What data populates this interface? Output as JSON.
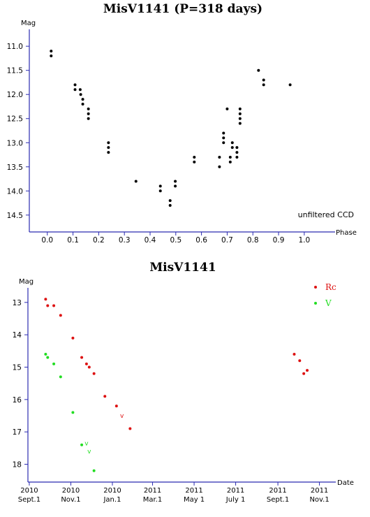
{
  "colors": {
    "axis": "#2b2bb0",
    "rc": "#dd1111",
    "v": "#22dd22",
    "phase_points": "#000000"
  },
  "chart_data": [
    {
      "type": "scatter",
      "title": "MisV1141 (P=318 days)",
      "xlabel": "Phase",
      "ylabel": "Mag",
      "note": "unfiltered CCD",
      "xlim": [
        -0.07,
        1.12
      ],
      "ylim": [
        14.85,
        10.65
      ],
      "y_inverted": true,
      "x_ticks": [
        0.0,
        0.1,
        0.2,
        0.3,
        0.4,
        0.5,
        0.6,
        0.7,
        0.8,
        0.9,
        1.0
      ],
      "x_tick_labels": [
        "0.0",
        "0.1",
        "0.2",
        "0.3",
        "0.4",
        "0.5",
        "0.6",
        "0.7",
        "0.8",
        "0.9",
        "1.0"
      ],
      "y_ticks": [
        11.0,
        11.5,
        12.0,
        12.5,
        13.0,
        13.5,
        14.0,
        14.5
      ],
      "y_tick_labels": [
        "11.0",
        "11.5",
        "12.0",
        "12.5",
        "13.0",
        "13.5",
        "14.0",
        "14.5"
      ],
      "series": [
        {
          "points": [
            [
              0.015,
              11.1
            ],
            [
              0.015,
              11.2
            ],
            [
              0.108,
              11.8
            ],
            [
              0.108,
              11.9
            ],
            [
              0.128,
              11.9
            ],
            [
              0.13,
              12.0
            ],
            [
              0.138,
              12.1
            ],
            [
              0.138,
              12.2
            ],
            [
              0.16,
              12.3
            ],
            [
              0.16,
              12.4
            ],
            [
              0.16,
              12.5
            ],
            [
              0.238,
              13.0
            ],
            [
              0.238,
              13.1
            ],
            [
              0.238,
              13.2
            ],
            [
              0.345,
              13.8
            ],
            [
              0.44,
              13.9
            ],
            [
              0.44,
              14.0
            ],
            [
              0.478,
              14.2
            ],
            [
              0.478,
              14.3
            ],
            [
              0.498,
              13.8
            ],
            [
              0.498,
              13.9
            ],
            [
              0.572,
              13.3
            ],
            [
              0.572,
              13.4
            ],
            [
              0.67,
              13.3
            ],
            [
              0.67,
              13.5
            ],
            [
              0.686,
              12.8
            ],
            [
              0.686,
              12.9
            ],
            [
              0.686,
              13.0
            ],
            [
              0.7,
              12.3
            ],
            [
              0.712,
              13.3
            ],
            [
              0.712,
              13.4
            ],
            [
              0.72,
              13.0
            ],
            [
              0.72,
              13.1
            ],
            [
              0.738,
              13.1
            ],
            [
              0.738,
              13.2
            ],
            [
              0.738,
              13.3
            ],
            [
              0.75,
              12.3
            ],
            [
              0.75,
              12.4
            ],
            [
              0.75,
              12.5
            ],
            [
              0.75,
              12.6
            ],
            [
              0.822,
              11.5
            ],
            [
              0.842,
              11.7
            ],
            [
              0.842,
              11.8
            ],
            [
              0.945,
              11.8
            ]
          ]
        }
      ]
    },
    {
      "type": "scatter",
      "title": "MisV1141",
      "xlabel": "Date",
      "ylabel": "Mag",
      "x_units": "days since 2010 Sept.1",
      "xlim": [
        -2,
        450
      ],
      "ylim": [
        18.55,
        12.55
      ],
      "y_inverted": true,
      "x_ticks": [
        0,
        61,
        122,
        181,
        242,
        303,
        365,
        426
      ],
      "x_tick_year_labels": [
        "2010",
        "2010",
        "2010",
        "2011",
        "2011",
        "2011",
        "2011",
        "2011"
      ],
      "x_tick_month_labels": [
        "Sept.1",
        "Nov.1",
        "Jan.1",
        "Mar.1",
        "May 1",
        "July 1",
        "Sept.1",
        "Nov.1"
      ],
      "y_ticks": [
        13,
        14,
        15,
        16,
        17,
        18
      ],
      "y_tick_labels": [
        "13",
        "14",
        "15",
        "16",
        "17",
        "18"
      ],
      "legend_position": "top-right",
      "series": [
        {
          "name": "Rc",
          "color": "#dd1111",
          "points": [
            [
              24,
              12.9
            ],
            [
              27,
              13.1
            ],
            [
              36,
              13.1
            ],
            [
              46,
              13.4
            ],
            [
              64,
              14.1
            ],
            [
              77,
              14.7
            ],
            [
              84,
              14.9
            ],
            [
              88,
              15.0
            ],
            [
              95,
              15.2
            ],
            [
              111,
              15.9
            ],
            [
              128,
              16.2
            ],
            [
              148,
              16.9
            ],
            [
              389,
              14.6
            ],
            [
              397,
              14.8
            ],
            [
              403,
              15.2
            ],
            [
              408,
              15.1
            ]
          ],
          "limit_points": [
            [
              136,
              16.5
            ]
          ]
        },
        {
          "name": "V",
          "color": "#22dd22",
          "points": [
            [
              24,
              14.6
            ],
            [
              27,
              14.7
            ],
            [
              36,
              14.9
            ],
            [
              46,
              15.3
            ],
            [
              64,
              16.4
            ],
            [
              77,
              17.4
            ],
            [
              95,
              18.2
            ]
          ],
          "limit_points": [
            [
              84,
              17.35
            ],
            [
              88,
              17.6
            ]
          ]
        }
      ]
    }
  ]
}
